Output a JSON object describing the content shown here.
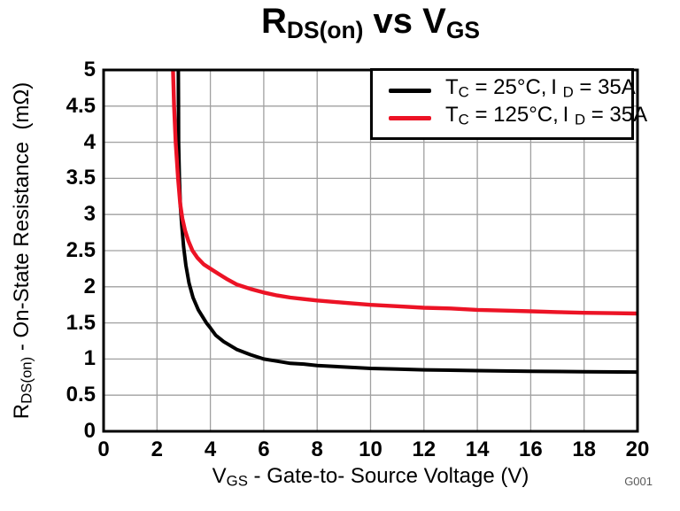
{
  "figure": {
    "background": "#ffffff",
    "watermark": "G001",
    "title_segments": [
      {
        "t": "R"
      },
      {
        "sub": "DS(on)"
      },
      {
        "t": " vs V"
      },
      {
        "sub": "GS"
      }
    ]
  },
  "axes": {
    "x_label_segments": [
      {
        "t": "V"
      },
      {
        "sub": "GS"
      },
      {
        "t": " - Gate-to- Source Voltage (V)"
      }
    ],
    "y_label_segments": [
      {
        "t": "R"
      },
      {
        "sub": "DS(on)"
      },
      {
        "t": " - On-State Resistance  (mΩ)"
      }
    ]
  },
  "legend": {
    "items": [
      {
        "color": "#000000",
        "label_segments": [
          {
            "t": "T"
          },
          {
            "sub": "C"
          },
          {
            "t": " = 25°C, I "
          },
          {
            "sub": "D"
          },
          {
            "t": " = 35A"
          }
        ]
      },
      {
        "color": "#ec1325",
        "label_segments": [
          {
            "t": "T"
          },
          {
            "sub": "C"
          },
          {
            "t": " = 125°C, I "
          },
          {
            "sub": "D"
          },
          {
            "t": " = 35A"
          }
        ]
      }
    ]
  },
  "chart_data": {
    "type": "line",
    "title": "RDS(on) vs VGS",
    "xlabel": "VGS - Gate-to- Source Voltage (V)",
    "ylabel": "RDS(on) - On-State Resistance (mΩ)",
    "xlim": [
      0,
      20
    ],
    "ylim": [
      0,
      5
    ],
    "x_ticks": [
      0,
      2,
      4,
      6,
      8,
      10,
      12,
      14,
      16,
      18,
      20
    ],
    "y_ticks": [
      0,
      0.5,
      1,
      1.5,
      2,
      2.5,
      3,
      3.5,
      4,
      4.5,
      5
    ],
    "grid": true,
    "grid_color": "#a0a0a0",
    "legend_position": "top-right",
    "watermark": "G001",
    "series": [
      {
        "name": "TC = 25°C, ID = 35A",
        "color": "#000000",
        "points": [
          [
            2.8,
            5.0
          ],
          [
            2.805,
            4.5
          ],
          [
            2.81,
            4.0
          ],
          [
            2.84,
            3.5
          ],
          [
            2.88,
            3.1
          ],
          [
            2.93,
            2.85
          ],
          [
            3.0,
            2.55
          ],
          [
            3.08,
            2.3
          ],
          [
            3.2,
            2.05
          ],
          [
            3.35,
            1.85
          ],
          [
            3.55,
            1.68
          ],
          [
            3.85,
            1.5
          ],
          [
            4.0,
            1.43
          ],
          [
            4.2,
            1.33
          ],
          [
            4.5,
            1.24
          ],
          [
            5.0,
            1.13
          ],
          [
            5.5,
            1.06
          ],
          [
            6.0,
            1.0
          ],
          [
            6.5,
            0.97
          ],
          [
            7.0,
            0.94
          ],
          [
            7.5,
            0.93
          ],
          [
            8.0,
            0.91
          ],
          [
            9.0,
            0.89
          ],
          [
            10.0,
            0.87
          ],
          [
            11.0,
            0.86
          ],
          [
            12.0,
            0.85
          ],
          [
            14.0,
            0.84
          ],
          [
            16.0,
            0.83
          ],
          [
            18.0,
            0.825
          ],
          [
            20.0,
            0.82
          ]
        ]
      },
      {
        "name": "TC = 125°C, ID = 35A",
        "color": "#ec1325",
        "points": [
          [
            2.6,
            5.0
          ],
          [
            2.64,
            4.5
          ],
          [
            2.7,
            4.0
          ],
          [
            2.79,
            3.5
          ],
          [
            2.87,
            3.15
          ],
          [
            2.95,
            2.95
          ],
          [
            3.05,
            2.78
          ],
          [
            3.18,
            2.63
          ],
          [
            3.33,
            2.5
          ],
          [
            3.52,
            2.4
          ],
          [
            3.75,
            2.31
          ],
          [
            4.0,
            2.25
          ],
          [
            4.3,
            2.18
          ],
          [
            4.6,
            2.11
          ],
          [
            5.0,
            2.03
          ],
          [
            5.5,
            1.97
          ],
          [
            6.0,
            1.92
          ],
          [
            6.5,
            1.88
          ],
          [
            7.0,
            1.85
          ],
          [
            7.5,
            1.83
          ],
          [
            8.0,
            1.81
          ],
          [
            9.0,
            1.78
          ],
          [
            10.0,
            1.75
          ],
          [
            11.0,
            1.73
          ],
          [
            12.0,
            1.71
          ],
          [
            13.0,
            1.7
          ],
          [
            14.0,
            1.68
          ],
          [
            15.0,
            1.67
          ],
          [
            16.0,
            1.66
          ],
          [
            17.0,
            1.65
          ],
          [
            18.0,
            1.64
          ],
          [
            19.0,
            1.635
          ],
          [
            20.0,
            1.63
          ]
        ]
      }
    ]
  }
}
